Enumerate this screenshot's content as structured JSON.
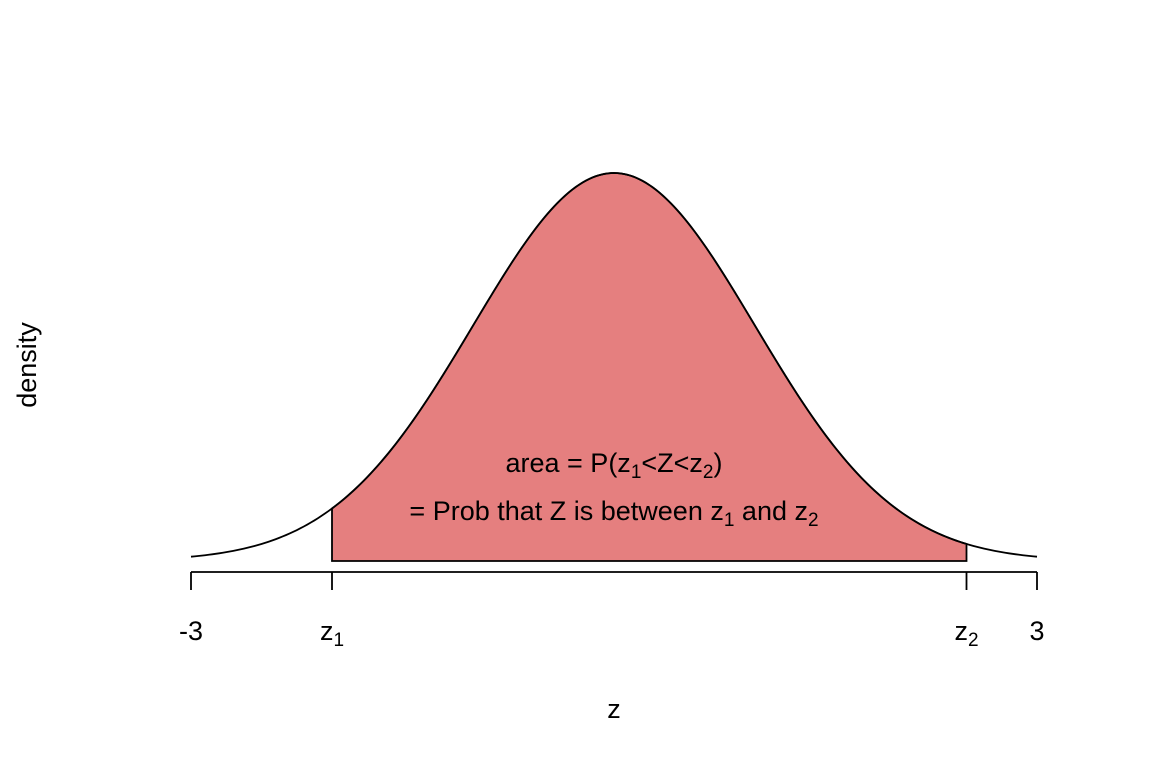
{
  "chart_data": {
    "type": "area",
    "distribution": "standard normal",
    "xlim": [
      -3,
      3
    ],
    "ylim": [
      0,
      0.4
    ],
    "x": [
      -3.0,
      -2.8,
      -2.6,
      -2.4,
      -2.2,
      -2.0,
      -1.8,
      -1.6,
      -1.4,
      -1.2,
      -1.0,
      -0.8,
      -0.6,
      -0.4,
      -0.2,
      0.0,
      0.2,
      0.4,
      0.6,
      0.8,
      1.0,
      1.2,
      1.4,
      1.6,
      1.8,
      2.0,
      2.2,
      2.4,
      2.6,
      2.8,
      3.0
    ],
    "y": [
      0.0044,
      0.0079,
      0.0136,
      0.0224,
      0.0355,
      0.054,
      0.079,
      0.1109,
      0.1497,
      0.1942,
      0.242,
      0.2897,
      0.3332,
      0.3683,
      0.391,
      0.3989,
      0.391,
      0.3683,
      0.3332,
      0.2897,
      0.242,
      0.1942,
      0.1497,
      0.1109,
      0.079,
      0.054,
      0.0355,
      0.0224,
      0.0136,
      0.0079,
      0.0044
    ],
    "shaded_region": {
      "from": -2,
      "to": 2.5
    },
    "fill_color": "#e57f7f",
    "line_color": "#000000",
    "xlabel": "z",
    "ylabel": "density",
    "ticks": [
      {
        "value": -3,
        "label": "-3",
        "sub": ""
      },
      {
        "value": -2,
        "label": "z",
        "sub": "1"
      },
      {
        "value": 2.5,
        "label": "z",
        "sub": "2"
      },
      {
        "value": 3,
        "label": "3",
        "sub": ""
      }
    ],
    "annotations": {
      "line1": {
        "pre": "area = P(z",
        "s1": "1",
        "mid": "<Z<z",
        "s2": "2",
        "post": ")"
      },
      "line2": {
        "pre": "= Prob that Z is between z",
        "s1": "1",
        "mid": " and z",
        "s2": "2"
      }
    }
  }
}
